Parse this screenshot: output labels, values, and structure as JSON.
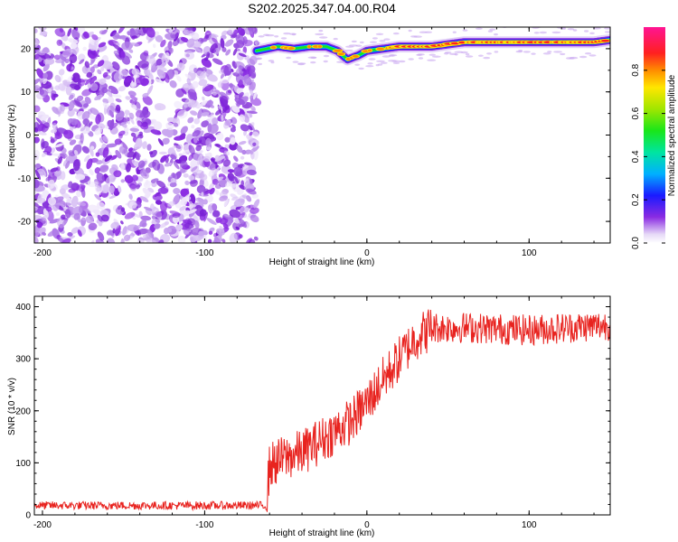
{
  "title": "S202.2025.347.04.00.R04",
  "chart_data": [
    {
      "type": "heatmap",
      "title": "S202.2025.347.04.00.R04",
      "xlabel": "Height of straight line (km)",
      "ylabel": "Frequency (Hz)",
      "xlim": [
        -205,
        150
      ],
      "ylim": [
        -25,
        25
      ],
      "xticks": [
        -200,
        -100,
        0,
        100
      ],
      "yticks": [
        -20,
        -10,
        0,
        10,
        20
      ],
      "noise_region_x": [
        -205,
        -68
      ],
      "signal_region_x": [
        -68,
        150
      ],
      "peak_frequency_track": {
        "x": [
          -68,
          -55,
          -45,
          -35,
          -25,
          -18,
          -12,
          -5,
          0,
          10,
          20,
          30,
          40,
          50,
          60,
          70,
          80,
          90,
          100,
          110,
          120,
          130,
          140,
          150
        ],
        "y": [
          19.5,
          20.5,
          20.0,
          20.5,
          20.5,
          19.5,
          17.5,
          18.5,
          19.5,
          20.0,
          20.5,
          20.5,
          20.5,
          21.0,
          21.5,
          21.5,
          21.5,
          21.5,
          21.5,
          21.5,
          21.5,
          21.5,
          21.5,
          22.0
        ]
      },
      "colorbar": {
        "label": "Normalized spectral amplitude",
        "range": [
          0.0,
          1.0
        ],
        "ticks": [
          0.0,
          0.2,
          0.4,
          0.6,
          0.8
        ],
        "tick_labels": [
          "0.0",
          "0.2",
          "0.4",
          "0.6",
          "0.8"
        ]
      }
    },
    {
      "type": "line",
      "xlabel": "Height of straight line (km)",
      "ylabel": "SNR (10 * v/v)",
      "xlim": [
        -205,
        150
      ],
      "ylim": [
        0,
        420
      ],
      "xticks": [
        -200,
        -100,
        0,
        100
      ],
      "yticks": [
        0,
        100,
        200,
        300,
        400
      ],
      "series": [
        {
          "name": "SNR",
          "color": "#e8231f",
          "trend": {
            "x": [
              -205,
              -62,
              -60,
              -50,
              -40,
              -30,
              -20,
              -10,
              0,
              10,
              20,
              30,
              40,
              60,
              100,
              150
            ],
            "y": [
              18,
              18,
              95,
              110,
              120,
              140,
              160,
              180,
              215,
              260,
              300,
              340,
              360,
              360,
              355,
              365
            ]
          },
          "noise_amplitude": [
            {
              "x_range": [
                -205,
                -62
              ],
              "amp": 8
            },
            {
              "x_range": [
                -62,
                40
              ],
              "amp": 45
            },
            {
              "x_range": [
                40,
                150
              ],
              "amp": 30
            }
          ]
        }
      ]
    }
  ],
  "colors": {
    "noise": "#8a2be2",
    "line": "#e8231f"
  }
}
